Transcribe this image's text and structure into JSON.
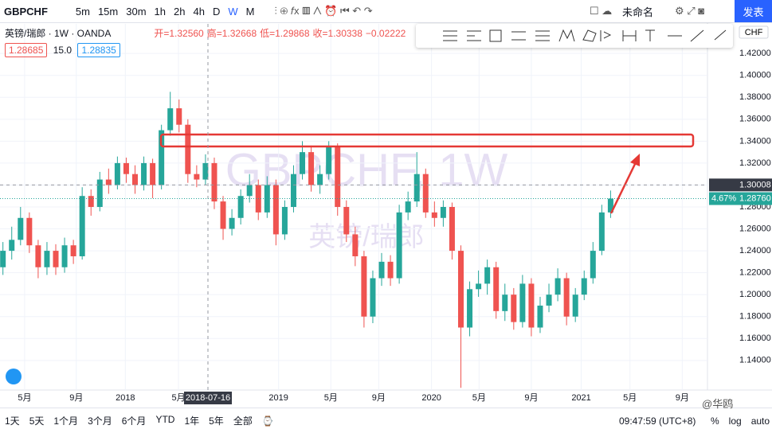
{
  "toolbar": {
    "symbol": "GBPCHF",
    "intervals": [
      "5m",
      "15m",
      "30m",
      "1h",
      "2h",
      "4h",
      "D",
      "W",
      "M"
    ],
    "layout_name": "未命名",
    "publish": "发表"
  },
  "legend": {
    "title": "英镑/瑞郎 · 1W · OANDA",
    "ohlc": [
      "开=1.32560",
      "高=1.32668",
      "低=1.29868",
      "收=1.30338",
      "−0.02222"
    ],
    "bid": "1.28685",
    "spread": "15.0",
    "ask": "1.28835"
  },
  "chart_data": {
    "type": "candlestick",
    "watermark": "GBPCHF, 1W",
    "watermark_sub": "英镑/瑞郎",
    "currency": "CHF",
    "x": [
      1,
      4,
      7,
      10,
      13,
      16,
      19,
      22,
      25,
      28,
      31,
      34,
      37,
      40,
      43,
      46,
      49,
      52,
      55,
      58,
      61,
      64,
      67,
      70,
      73,
      76,
      79,
      82,
      85,
      88,
      91,
      94,
      97,
      100,
      103,
      106,
      109,
      112,
      115,
      118,
      121,
      124,
      127,
      130,
      133,
      136,
      139,
      142,
      145,
      148,
      151,
      154,
      157,
      160,
      163,
      166,
      169,
      172,
      175,
      178,
      181,
      184,
      187,
      190,
      193,
      196,
      199,
      202,
      205,
      208
    ],
    "open": [
      1.225,
      1.24,
      1.25,
      1.27,
      1.245,
      1.225,
      1.24,
      1.225,
      1.245,
      1.235,
      1.29,
      1.28,
      1.305,
      1.3,
      1.32,
      1.31,
      1.3,
      1.32,
      1.3,
      1.35,
      1.37,
      1.355,
      1.31,
      1.305,
      1.32,
      1.285,
      1.26,
      1.27,
      1.29,
      1.3,
      1.275,
      1.3,
      1.255,
      1.28,
      1.31,
      1.33,
      1.3,
      1.31,
      1.335,
      1.28,
      1.255,
      1.235,
      1.18,
      1.215,
      1.23,
      1.215,
      1.275,
      1.285,
      1.31,
      1.275,
      1.27,
      1.28,
      1.24,
      1.17,
      1.205,
      1.21,
      1.225,
      1.185,
      1.2,
      1.175,
      1.21,
      1.17,
      1.19,
      1.2,
      1.215,
      1.18,
      1.2,
      1.215,
      1.24,
      1.275
    ],
    "high": [
      1.248,
      1.262,
      1.28,
      1.275,
      1.25,
      1.248,
      1.246,
      1.252,
      1.25,
      1.298,
      1.296,
      1.312,
      1.315,
      1.326,
      1.325,
      1.318,
      1.326,
      1.324,
      1.355,
      1.385,
      1.378,
      1.36,
      1.318,
      1.328,
      1.325,
      1.29,
      1.278,
      1.296,
      1.31,
      1.305,
      1.308,
      1.305,
      1.286,
      1.318,
      1.34,
      1.336,
      1.318,
      1.34,
      1.338,
      1.286,
      1.262,
      1.24,
      1.222,
      1.238,
      1.236,
      1.282,
      1.294,
      1.33,
      1.315,
      1.285,
      1.286,
      1.284,
      1.245,
      1.212,
      1.222,
      1.232,
      1.23,
      1.21,
      1.206,
      1.218,
      1.215,
      1.198,
      1.21,
      1.224,
      1.22,
      1.206,
      1.222,
      1.248,
      1.282,
      1.295
    ],
    "low": [
      1.218,
      1.232,
      1.245,
      1.238,
      1.215,
      1.218,
      1.218,
      1.22,
      1.228,
      1.232,
      1.272,
      1.276,
      1.292,
      1.296,
      1.302,
      1.292,
      1.295,
      1.288,
      1.296,
      1.345,
      1.348,
      1.302,
      1.298,
      1.3,
      1.278,
      1.25,
      1.254,
      1.264,
      1.284,
      1.268,
      1.27,
      1.245,
      1.25,
      1.275,
      1.305,
      1.294,
      1.292,
      1.305,
      1.272,
      1.248,
      1.226,
      1.17,
      1.174,
      1.208,
      1.208,
      1.21,
      1.268,
      1.28,
      1.27,
      1.262,
      1.262,
      1.232,
      1.115,
      1.162,
      1.198,
      1.2,
      1.178,
      1.176,
      1.168,
      1.17,
      1.162,
      1.165,
      1.184,
      1.194,
      1.172,
      1.175,
      1.195,
      1.21,
      1.236,
      1.27
    ],
    "close": [
      1.24,
      1.25,
      1.27,
      1.245,
      1.225,
      1.24,
      1.225,
      1.245,
      1.235,
      1.29,
      1.28,
      1.305,
      1.3,
      1.32,
      1.31,
      1.3,
      1.32,
      1.3,
      1.35,
      1.37,
      1.355,
      1.31,
      1.305,
      1.32,
      1.285,
      1.26,
      1.27,
      1.29,
      1.3,
      1.275,
      1.3,
      1.255,
      1.28,
      1.31,
      1.33,
      1.3,
      1.31,
      1.335,
      1.28,
      1.255,
      1.235,
      1.18,
      1.215,
      1.23,
      1.215,
      1.275,
      1.285,
      1.31,
      1.275,
      1.27,
      1.28,
      1.24,
      1.17,
      1.205,
      1.21,
      1.225,
      1.185,
      1.2,
      1.175,
      1.21,
      1.17,
      1.19,
      1.2,
      1.215,
      1.18,
      1.2,
      1.215,
      1.24,
      1.275,
      1.2876
    ],
    "up_color": "#26a69a",
    "down_color": "#ef5350",
    "grid": true,
    "xlim": [
      0,
      241
    ],
    "xticks": [
      {
        "value": 8.4,
        "label": "5月"
      },
      {
        "value": 26,
        "label": "9月"
      },
      {
        "value": 42.7,
        "label": "2018"
      },
      {
        "value": 60.8,
        "label": "5月"
      },
      {
        "value": 94.9,
        "label": "2019"
      },
      {
        "value": 112.7,
        "label": "5月"
      },
      {
        "value": 129,
        "label": "9月"
      },
      {
        "value": 147,
        "label": "2020"
      },
      {
        "value": 163.2,
        "label": "5月"
      },
      {
        "value": 181,
        "label": "9月"
      },
      {
        "value": 198,
        "label": "2021"
      },
      {
        "value": 214.6,
        "label": "5月"
      },
      {
        "value": 232.4,
        "label": "9月"
      }
    ],
    "ylim": [
      1.113,
      1.447
    ],
    "yticks": [
      {
        "value": 1.14,
        "label": "1.14000"
      },
      {
        "value": 1.16,
        "label": "1.16000"
      },
      {
        "value": 1.18,
        "label": "1.18000"
      },
      {
        "value": 1.2,
        "label": "1.20000"
      },
      {
        "value": 1.22,
        "label": "1.22000"
      },
      {
        "value": 1.24,
        "label": "1.24000"
      },
      {
        "value": 1.26,
        "label": "1.26000"
      },
      {
        "value": 1.28,
        "label": "1.28000"
      },
      {
        "value": 1.3,
        "label": "1.30000"
      },
      {
        "value": 1.32,
        "label": "1.32000"
      },
      {
        "value": 1.34,
        "label": "1.34000"
      },
      {
        "value": 1.36,
        "label": "1.36000"
      },
      {
        "value": 1.38,
        "label": "1.38000"
      },
      {
        "value": 1.4,
        "label": "1.40000"
      },
      {
        "value": 1.42,
        "label": "1.42000"
      }
    ],
    "crosshair_price": 1.30008,
    "crosshair_date": "2018-07-16",
    "last_price": {
      "value": 1.2876,
      "label": "1.28760"
    },
    "change": "4.67%"
  },
  "bottom_bar": {
    "ranges": [
      "1天",
      "5天",
      "1个月",
      "3个月",
      "6个月",
      "YTD",
      "1年",
      "5年",
      "全部"
    ],
    "time": "09:47:59 (UTC+8)",
    "options": [
      "%",
      "log",
      "auto"
    ],
    "watermark": "@华鸥"
  }
}
